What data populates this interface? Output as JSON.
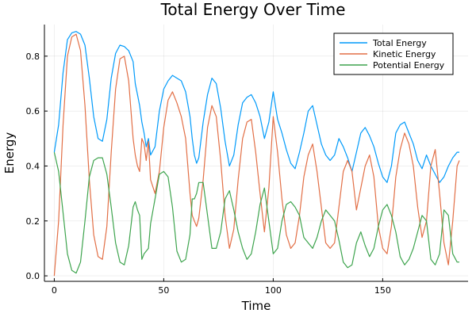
{
  "chart_data": {
    "type": "line",
    "title": "Total Energy Over Time",
    "xlabel": "Time",
    "ylabel": "Energy",
    "xlim": [
      -4.5,
      189
    ],
    "ylim": [
      -0.02,
      0.915
    ],
    "x_ticks": [
      0,
      50,
      100,
      150
    ],
    "y_ticks": [
      0.0,
      0.2,
      0.4,
      0.6,
      0.8
    ],
    "x_tick_labels": [
      "0",
      "50",
      "100",
      "150"
    ],
    "y_tick_labels": [
      "0.0",
      "0.2",
      "0.4",
      "0.6",
      "0.8"
    ],
    "grid": true,
    "legend_position": "top-right",
    "series": [
      {
        "name": "Total Energy",
        "color": "#009AFA",
        "x": [
          0,
          2,
          4,
          6,
          8,
          10,
          12,
          14,
          16,
          18,
          20,
          22,
          24,
          26,
          28,
          30,
          32,
          34,
          36,
          37,
          38,
          39,
          40,
          41,
          42,
          43,
          44,
          46,
          48,
          50,
          52,
          54,
          56,
          58,
          60,
          62,
          63,
          64,
          65,
          66,
          68,
          70,
          72,
          74,
          76,
          78,
          80,
          82,
          84,
          86,
          88,
          90,
          92,
          94,
          96,
          98,
          100,
          102,
          104,
          106,
          108,
          110,
          112,
          114,
          116,
          118,
          120,
          122,
          124,
          126,
          128,
          130,
          132,
          134,
          136,
          138,
          140,
          142,
          144,
          146,
          148,
          150,
          152,
          154,
          156,
          158,
          160,
          162,
          164,
          166,
          168,
          170,
          172,
          174,
          176,
          178,
          180,
          182,
          184,
          185
        ],
        "y": [
          0.45,
          0.55,
          0.74,
          0.86,
          0.885,
          0.89,
          0.88,
          0.84,
          0.72,
          0.58,
          0.5,
          0.49,
          0.57,
          0.72,
          0.81,
          0.84,
          0.835,
          0.82,
          0.78,
          0.7,
          0.66,
          0.62,
          0.56,
          0.52,
          0.47,
          0.5,
          0.44,
          0.47,
          0.6,
          0.68,
          0.71,
          0.73,
          0.72,
          0.71,
          0.67,
          0.58,
          0.5,
          0.44,
          0.41,
          0.43,
          0.56,
          0.66,
          0.72,
          0.7,
          0.61,
          0.49,
          0.4,
          0.44,
          0.55,
          0.63,
          0.65,
          0.66,
          0.63,
          0.58,
          0.5,
          0.56,
          0.67,
          0.57,
          0.52,
          0.46,
          0.41,
          0.39,
          0.45,
          0.52,
          0.6,
          0.62,
          0.55,
          0.48,
          0.44,
          0.42,
          0.44,
          0.5,
          0.47,
          0.43,
          0.38,
          0.45,
          0.52,
          0.54,
          0.51,
          0.47,
          0.41,
          0.36,
          0.34,
          0.4,
          0.52,
          0.55,
          0.56,
          0.52,
          0.48,
          0.42,
          0.39,
          0.44,
          0.4,
          0.37,
          0.34,
          0.36,
          0.4,
          0.43,
          0.45,
          0.45
        ]
      },
      {
        "name": "Kinetic Energy",
        "color": "#E26F46",
        "x": [
          0,
          2,
          4,
          6,
          8,
          10,
          12,
          14,
          16,
          18,
          20,
          22,
          24,
          26,
          28,
          30,
          32,
          34,
          36,
          37,
          38,
          39,
          40,
          41,
          42,
          43,
          44,
          46,
          48,
          50,
          52,
          54,
          56,
          58,
          60,
          62,
          63,
          64,
          65,
          66,
          68,
          70,
          72,
          74,
          76,
          78,
          80,
          82,
          84,
          86,
          88,
          90,
          92,
          94,
          96,
          98,
          100,
          102,
          104,
          106,
          108,
          110,
          112,
          114,
          116,
          118,
          120,
          122,
          124,
          126,
          128,
          130,
          132,
          134,
          136,
          138,
          140,
          142,
          144,
          146,
          148,
          150,
          152,
          154,
          156,
          158,
          160,
          162,
          164,
          166,
          168,
          170,
          172,
          174,
          176,
          178,
          180,
          182,
          184,
          185
        ],
        "y": [
          0.0,
          0.2,
          0.55,
          0.8,
          0.87,
          0.88,
          0.82,
          0.62,
          0.35,
          0.15,
          0.07,
          0.06,
          0.18,
          0.45,
          0.68,
          0.79,
          0.8,
          0.71,
          0.5,
          0.44,
          0.4,
          0.38,
          0.5,
          0.48,
          0.42,
          0.49,
          0.35,
          0.3,
          0.38,
          0.54,
          0.64,
          0.67,
          0.63,
          0.58,
          0.5,
          0.3,
          0.22,
          0.2,
          0.18,
          0.21,
          0.35,
          0.54,
          0.62,
          0.58,
          0.42,
          0.22,
          0.1,
          0.17,
          0.35,
          0.5,
          0.56,
          0.57,
          0.45,
          0.3,
          0.16,
          0.32,
          0.58,
          0.45,
          0.28,
          0.15,
          0.1,
          0.12,
          0.22,
          0.36,
          0.44,
          0.48,
          0.38,
          0.25,
          0.12,
          0.1,
          0.12,
          0.25,
          0.38,
          0.42,
          0.38,
          0.24,
          0.32,
          0.4,
          0.44,
          0.36,
          0.18,
          0.1,
          0.08,
          0.18,
          0.36,
          0.46,
          0.52,
          0.48,
          0.4,
          0.25,
          0.14,
          0.2,
          0.4,
          0.46,
          0.3,
          0.12,
          0.04,
          0.2,
          0.4,
          0.42
        ]
      },
      {
        "name": "Potential Energy",
        "color": "#3EA44E",
        "x": [
          0,
          2,
          4,
          6,
          8,
          10,
          12,
          14,
          16,
          18,
          20,
          22,
          24,
          26,
          28,
          30,
          32,
          34,
          36,
          37,
          38,
          39,
          40,
          41,
          42,
          43,
          44,
          46,
          48,
          50,
          52,
          54,
          56,
          58,
          60,
          62,
          63,
          64,
          65,
          66,
          68,
          70,
          72,
          74,
          76,
          78,
          80,
          82,
          84,
          86,
          88,
          90,
          92,
          94,
          96,
          98,
          100,
          102,
          104,
          106,
          108,
          110,
          112,
          114,
          116,
          118,
          120,
          122,
          124,
          126,
          128,
          130,
          132,
          134,
          136,
          138,
          140,
          142,
          144,
          146,
          148,
          150,
          152,
          154,
          156,
          158,
          160,
          162,
          164,
          166,
          168,
          170,
          172,
          174,
          176,
          178,
          180,
          182,
          184,
          185
        ],
        "y": [
          0.45,
          0.38,
          0.23,
          0.08,
          0.02,
          0.01,
          0.05,
          0.2,
          0.36,
          0.42,
          0.43,
          0.43,
          0.37,
          0.25,
          0.12,
          0.05,
          0.04,
          0.11,
          0.25,
          0.27,
          0.24,
          0.22,
          0.06,
          0.08,
          0.09,
          0.1,
          0.19,
          0.28,
          0.37,
          0.38,
          0.36,
          0.25,
          0.09,
          0.05,
          0.06,
          0.15,
          0.28,
          0.28,
          0.3,
          0.34,
          0.34,
          0.22,
          0.1,
          0.1,
          0.16,
          0.28,
          0.31,
          0.24,
          0.16,
          0.1,
          0.06,
          0.08,
          0.16,
          0.26,
          0.32,
          0.2,
          0.08,
          0.1,
          0.2,
          0.26,
          0.27,
          0.25,
          0.22,
          0.14,
          0.12,
          0.1,
          0.14,
          0.2,
          0.24,
          0.22,
          0.2,
          0.13,
          0.05,
          0.03,
          0.04,
          0.12,
          0.16,
          0.11,
          0.07,
          0.1,
          0.18,
          0.24,
          0.26,
          0.22,
          0.16,
          0.07,
          0.04,
          0.06,
          0.1,
          0.16,
          0.22,
          0.2,
          0.06,
          0.04,
          0.08,
          0.24,
          0.22,
          0.08,
          0.05,
          0.05
        ]
      }
    ]
  }
}
